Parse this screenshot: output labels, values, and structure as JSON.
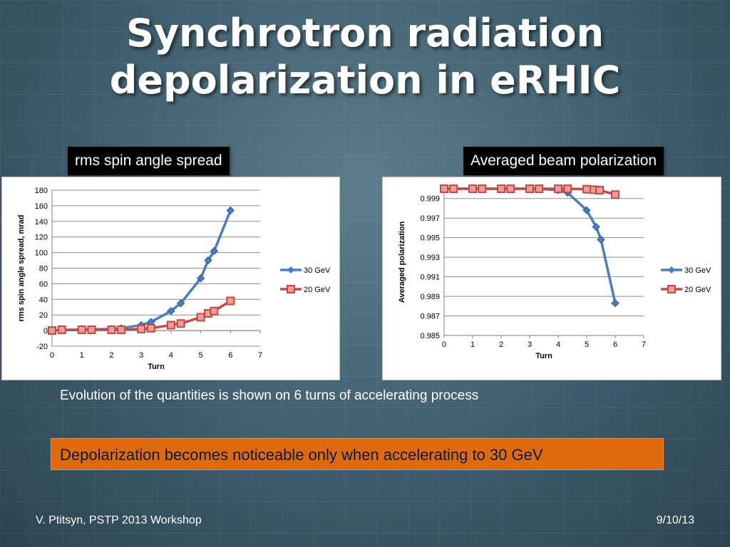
{
  "slide": {
    "title_line1": "Synchrotron radiation",
    "title_line2": "depolarization in eRHIC",
    "left_label": "rms spin angle spread",
    "right_label": "Averaged beam polarization",
    "caption": "Evolution of the quantities is shown on 6 turns of accelerating process",
    "highlight": "Depolarization becomes noticeable only when accelerating to 30 GeV",
    "footer_left": "V. Ptitsyn, PSTP 2013 Workshop",
    "footer_right": "9/10/13"
  },
  "colors": {
    "series_30gev": "#4a7ebb",
    "series_20gev": "#be4b48",
    "highlight_bg": "#de6a10"
  },
  "chart_data": [
    {
      "type": "line",
      "xlabel": "Turn",
      "ylabel": "rms spin angle spread, mrad",
      "xlim": [
        0,
        7
      ],
      "ylim": [
        -20,
        180
      ],
      "x_ticks": [
        0,
        1,
        2,
        3,
        4,
        5,
        6,
        7
      ],
      "y_ticks": [
        -20,
        0,
        20,
        40,
        60,
        80,
        100,
        120,
        140,
        160,
        180
      ],
      "x_tick_labels": [
        "0",
        "1",
        "2",
        "3",
        "4",
        "5",
        "6",
        "7"
      ],
      "y_tick_labels": [
        "-20",
        "0",
        "20",
        "40",
        "60",
        "80",
        "100",
        "120",
        "140",
        "160",
        "180"
      ],
      "grid": "horizontal",
      "legend": "right",
      "series": [
        {
          "name": "30 GeV",
          "marker": "diamond",
          "x": [
            0,
            0.33,
            1,
            1.33,
            2,
            2.33,
            3,
            3.33,
            4,
            4.33,
            5,
            5.25,
            5.45,
            6
          ],
          "y": [
            0,
            0.5,
            1,
            1.5,
            2,
            3,
            7,
            11,
            25,
            35,
            67,
            90,
            102,
            154
          ]
        },
        {
          "name": "20 GeV",
          "marker": "square",
          "x": [
            0,
            0.33,
            1,
            1.33,
            2,
            2.33,
            3,
            3.33,
            4,
            4.33,
            5,
            5.25,
            5.45,
            6
          ],
          "y": [
            0,
            1,
            1,
            1,
            1,
            1,
            2,
            3,
            7,
            9,
            17,
            22,
            25,
            38
          ]
        }
      ]
    },
    {
      "type": "line",
      "xlabel": "Turn",
      "ylabel": "Averaged polarization",
      "xlim": [
        0,
        7
      ],
      "ylim": [
        0.985,
        1.0
      ],
      "x_ticks": [
        0,
        1,
        2,
        3,
        4,
        5,
        6,
        7
      ],
      "y_ticks": [
        0.985,
        0.987,
        0.989,
        0.991,
        0.993,
        0.995,
        0.997,
        0.999
      ],
      "x_tick_labels": [
        "0",
        "1",
        "2",
        "3",
        "4",
        "5",
        "6",
        "7"
      ],
      "y_tick_labels": [
        "0.985",
        "0.987",
        "0.989",
        "0.991",
        "0.993",
        "0.995",
        "0.997",
        "0.999"
      ],
      "grid": "horizontal",
      "legend": "right",
      "series": [
        {
          "name": "30 GeV",
          "marker": "diamond",
          "x": [
            0,
            0.33,
            1,
            1.33,
            2,
            2.33,
            3,
            3.33,
            4,
            4.33,
            5,
            5.33,
            5.5,
            6
          ],
          "y": [
            1.0,
            1.0,
            1.0,
            1.0,
            1.0,
            1.0,
            1.0,
            1.0,
            0.99985,
            0.9996,
            0.9978,
            0.9961,
            0.9948,
            0.9883
          ]
        },
        {
          "name": "20 GeV",
          "marker": "square",
          "x": [
            0,
            0.33,
            1,
            1.33,
            2,
            2.33,
            3,
            3.33,
            4,
            4.33,
            5,
            5.25,
            5.45,
            6
          ],
          "y": [
            1.0,
            1.0,
            1.0,
            1.0,
            1.0,
            1.0,
            1.0,
            1.0,
            1.0,
            1.0,
            0.99995,
            0.9999,
            0.99985,
            0.9994
          ]
        }
      ]
    }
  ]
}
